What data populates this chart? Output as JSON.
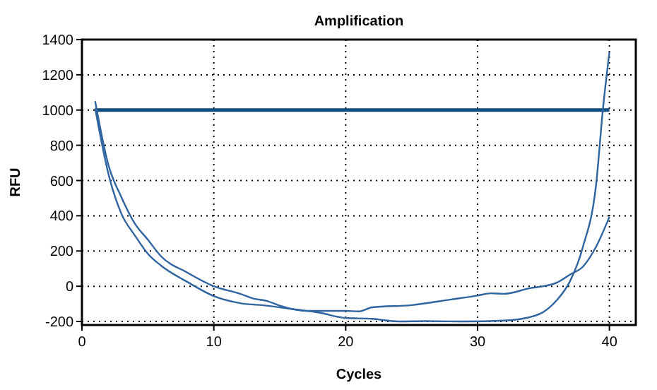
{
  "chart_data": {
    "type": "line",
    "title": "Amplification",
    "xlabel": "Cycles",
    "ylabel": "RFU",
    "xlim": [
      0,
      42
    ],
    "xticks": [
      0,
      10,
      20,
      30,
      40
    ],
    "ylim": [
      -220,
      1400
    ],
    "yticks": [
      -200,
      0,
      200,
      400,
      600,
      800,
      1000,
      1200,
      1400
    ],
    "grid": true,
    "line_style": "solid",
    "marker": "none",
    "ref_lines": [
      {
        "axis": "y",
        "value": 1000,
        "color": "#0f4c81"
      }
    ],
    "series": [
      {
        "color": "#2f64a0",
        "x": [
          1,
          2,
          3,
          4,
          5,
          6,
          8,
          10,
          12,
          14,
          16,
          18,
          20,
          22,
          24,
          26,
          29,
          32,
          34,
          35,
          36,
          37,
          38,
          39,
          39.5,
          40
        ],
        "values": [
          1010,
          640,
          410,
          290,
          184,
          117,
          24,
          -56,
          -96,
          -110,
          -130,
          -150,
          -180,
          -185,
          -200,
          -198,
          -200,
          -195,
          -175,
          -146,
          -80,
          27,
          226,
          585,
          1000,
          1330
        ]
      },
      {
        "color": "#2f64a0",
        "x": [
          1,
          2,
          3,
          4,
          5,
          6,
          8,
          10,
          12,
          13,
          14,
          15,
          17,
          20,
          21,
          22,
          25,
          28,
          30,
          31,
          32,
          34,
          35,
          36,
          37,
          38,
          39,
          40
        ],
        "values": [
          1050,
          690,
          504,
          357,
          264,
          170,
          77,
          0,
          -43,
          -70,
          -83,
          -110,
          -140,
          -140,
          -143,
          -120,
          -107,
          -75,
          -53,
          -40,
          -43,
          -11,
          0,
          20,
          66,
          112,
          226,
          394
        ]
      }
    ]
  }
}
